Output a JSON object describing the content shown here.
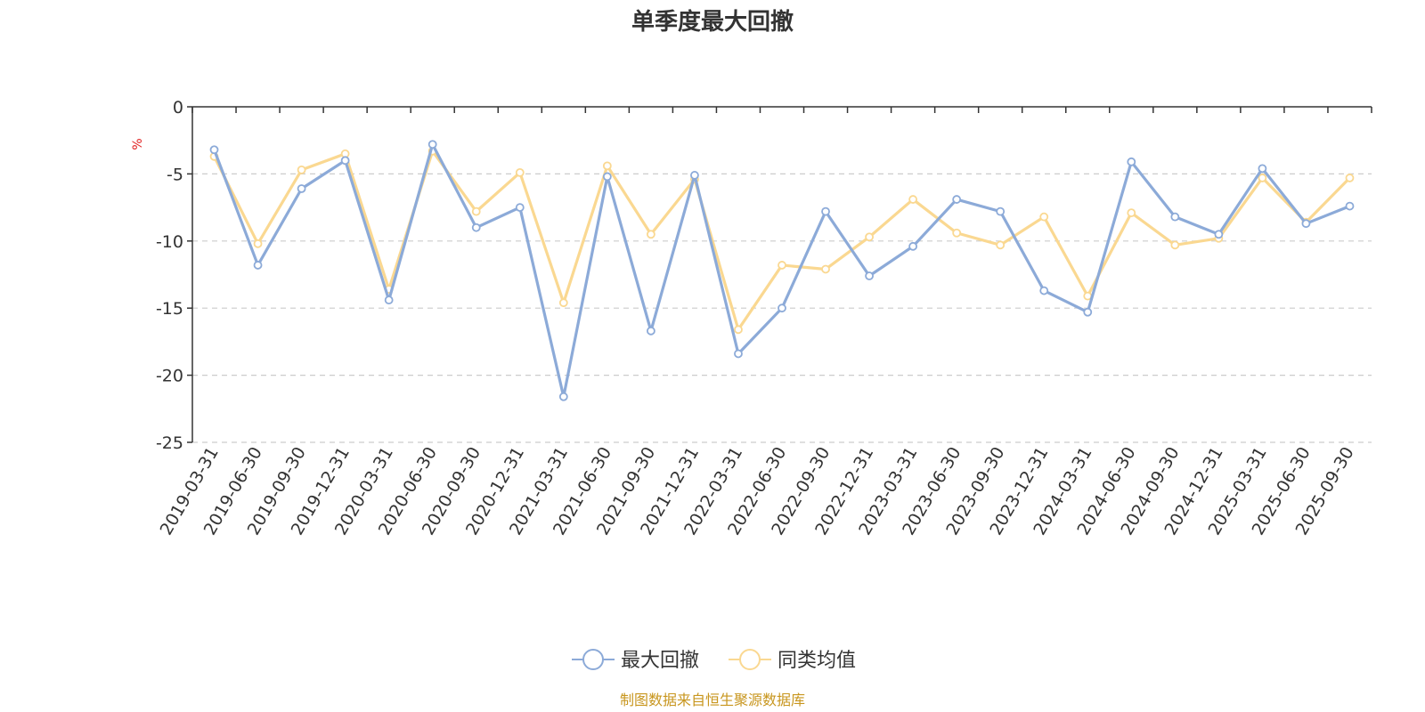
{
  "chart_data": {
    "type": "line",
    "title": "单季度最大回撤",
    "ylabel": "%",
    "ylim": [
      -25,
      0
    ],
    "yticks": [
      0,
      -5,
      -10,
      -15,
      -20,
      -25
    ],
    "grid": "horizontal-dashed",
    "legend_position": "bottom-center",
    "categories": [
      "2019-03-31",
      "2019-06-30",
      "2019-09-30",
      "2019-12-31",
      "2020-03-31",
      "2020-06-30",
      "2020-09-30",
      "2020-12-31",
      "2021-03-31",
      "2021-06-30",
      "2021-09-30",
      "2021-12-31",
      "2022-03-31",
      "2022-06-30",
      "2022-09-30",
      "2022-12-31",
      "2023-03-31",
      "2023-06-30",
      "2023-09-30",
      "2023-12-31",
      "2024-03-31",
      "2024-06-30",
      "2024-09-30",
      "2024-12-31",
      "2025-03-31",
      "2025-06-30",
      "2025-09-30"
    ],
    "series": [
      {
        "name": "最大回撤",
        "color": "#8caad8",
        "values": [
          -3.2,
          -11.8,
          -6.1,
          -4.0,
          -14.4,
          -2.8,
          -9.0,
          -7.5,
          -21.6,
          -5.2,
          -16.7,
          -5.1,
          -18.4,
          -15.0,
          -7.8,
          -12.6,
          -10.4,
          -6.9,
          -7.8,
          -13.7,
          -15.3,
          -4.1,
          -8.2,
          -9.5,
          -4.6,
          -8.7,
          -7.4
        ]
      },
      {
        "name": "同类均值",
        "color": "#fad891",
        "values": [
          -3.7,
          -10.2,
          -4.7,
          -3.5,
          -13.6,
          -3.3,
          -7.8,
          -4.9,
          -14.6,
          -4.4,
          -9.5,
          -5.4,
          -16.6,
          -11.8,
          -12.1,
          -9.7,
          -6.9,
          -9.4,
          -10.3,
          -8.2,
          -14.1,
          -7.9,
          -10.3,
          -9.8,
          -5.3,
          -8.6,
          -5.3
        ]
      }
    ]
  },
  "footer": {
    "source": "制图数据来自恒生聚源数据库"
  }
}
